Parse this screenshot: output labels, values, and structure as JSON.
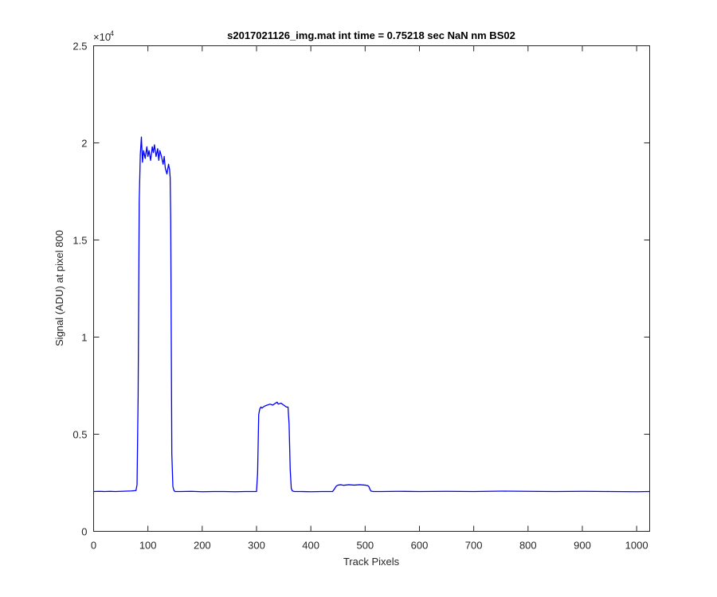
{
  "chart_data": {
    "type": "line",
    "title": "s2017021126_img.mat int time = 0.75218 sec  NaN nm BS02",
    "xlabel": "Track Pixels",
    "ylabel": "Signal (ADU) at pixel 800",
    "exponent_base": "×10",
    "exponent_power": "4",
    "xlim": [
      0,
      1024
    ],
    "ylim": [
      0,
      25000
    ],
    "x_ticks": [
      0,
      100,
      200,
      300,
      400,
      500,
      600,
      700,
      800,
      900,
      1000
    ],
    "x_tick_labels": [
      "0",
      "100",
      "200",
      "300",
      "400",
      "500",
      "600",
      "700",
      "800",
      "900",
      "1000"
    ],
    "y_ticks": [
      0,
      5000,
      10000,
      15000,
      20000,
      25000
    ],
    "y_tick_labels": [
      "0",
      "0.5",
      "1",
      "1.5",
      "2",
      "2.5"
    ],
    "grid": false,
    "line_color": "#0000ff",
    "series": [
      {
        "x": [
          0,
          10,
          20,
          30,
          40,
          50,
          60,
          70,
          78,
          80,
          82,
          84,
          86,
          88,
          90,
          92,
          95,
          98,
          100,
          102,
          105,
          108,
          110,
          112,
          115,
          118,
          120,
          122,
          125,
          128,
          130,
          132,
          135,
          138,
          140,
          141,
          142,
          143,
          144,
          146,
          148,
          150,
          160,
          180,
          200,
          220,
          240,
          260,
          280,
          300,
          302,
          304,
          306,
          308,
          310,
          315,
          320,
          325,
          330,
          335,
          338,
          340,
          345,
          350,
          355,
          358,
          360,
          362,
          364,
          366,
          370,
          380,
          400,
          420,
          440,
          444,
          446,
          448,
          450,
          455,
          460,
          470,
          480,
          490,
          500,
          505,
          507,
          509,
          511,
          515,
          530,
          560,
          600,
          650,
          700,
          750,
          800,
          850,
          900,
          950,
          1000,
          1024
        ],
        "y": [
          2050,
          2060,
          2050,
          2060,
          2050,
          2060,
          2070,
          2080,
          2100,
          2400,
          7000,
          17000,
          19400,
          20300,
          19000,
          19600,
          19200,
          19800,
          19300,
          19600,
          19100,
          19800,
          19500,
          19900,
          19300,
          19700,
          19100,
          19600,
          19300,
          18900,
          19300,
          18700,
          18400,
          18900,
          18600,
          18200,
          16000,
          10000,
          4000,
          2300,
          2100,
          2050,
          2050,
          2060,
          2040,
          2050,
          2050,
          2040,
          2050,
          2050,
          3000,
          6000,
          6300,
          6400,
          6350,
          6450,
          6500,
          6550,
          6500,
          6600,
          6650,
          6550,
          6600,
          6500,
          6400,
          6400,
          5500,
          3200,
          2200,
          2080,
          2050,
          2050,
          2040,
          2050,
          2050,
          2200,
          2300,
          2350,
          2380,
          2400,
          2370,
          2400,
          2380,
          2400,
          2380,
          2350,
          2300,
          2150,
          2070,
          2050,
          2050,
          2060,
          2050,
          2060,
          2050,
          2070,
          2060,
          2050,
          2060,
          2050,
          2040,
          2050
        ]
      }
    ]
  }
}
